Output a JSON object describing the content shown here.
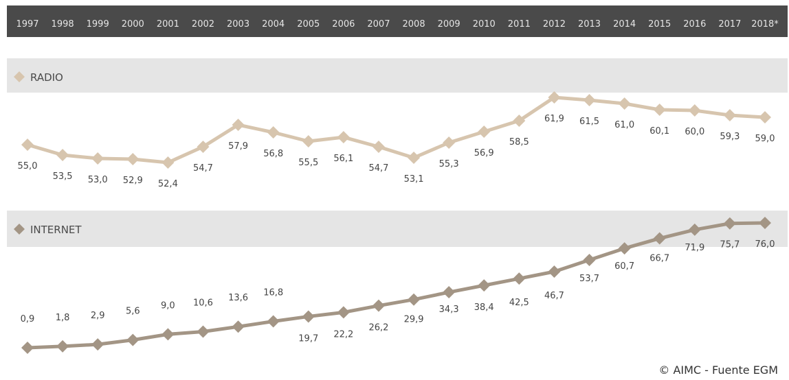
{
  "chart_data": {
    "type": "line",
    "categories": [
      "1997",
      "1998",
      "1999",
      "2000",
      "2001",
      "2002",
      "2003",
      "2004",
      "2005",
      "2006",
      "2007",
      "2008",
      "2009",
      "2010",
      "2011",
      "2012",
      "2013",
      "2014",
      "2015",
      "2016",
      "2017",
      "2018*"
    ],
    "series": [
      {
        "name": "RADIO",
        "color": "#d7c5ae",
        "values": [
          55.0,
          53.5,
          53.0,
          52.9,
          52.4,
          54.7,
          57.9,
          56.8,
          55.5,
          56.1,
          54.7,
          53.1,
          55.3,
          56.9,
          58.5,
          61.9,
          61.5,
          61.0,
          60.1,
          60.0,
          59.3,
          59.0
        ],
        "labels": [
          "55,0",
          "53,5",
          "53,0",
          "52,9",
          "52,4",
          "54,7",
          "57,9",
          "56,8",
          "55,5",
          "56,1",
          "54,7",
          "53,1",
          "55,3",
          "56,9",
          "58,5",
          "61,9",
          "61,5",
          "61,0",
          "60,1",
          "60,0",
          "59,3",
          "59,0"
        ]
      },
      {
        "name": "INTERNET",
        "color": "#a39585",
        "values": [
          0.9,
          1.8,
          2.9,
          5.6,
          9.0,
          10.6,
          13.6,
          16.8,
          19.7,
          22.2,
          26.2,
          29.9,
          34.3,
          38.4,
          42.5,
          46.7,
          53.7,
          60.7,
          66.7,
          71.9,
          75.7,
          76.0
        ],
        "labels": [
          "0,9",
          "1,8",
          "2,9",
          "5,6",
          "9,0",
          "10,6",
          "13,6",
          "16,8",
          "19,7",
          "22,2",
          "26,2",
          "29,9",
          "34,3",
          "38,4",
          "42,5",
          "46,7",
          "53,7",
          "60,7",
          "66,7",
          "71,9",
          "75,7",
          "76,0"
        ]
      }
    ],
    "credit": "© AIMC - Fuente EGM",
    "colors": {
      "header_band": "#4a4a4a",
      "row_band": "#e5e5e5"
    }
  }
}
